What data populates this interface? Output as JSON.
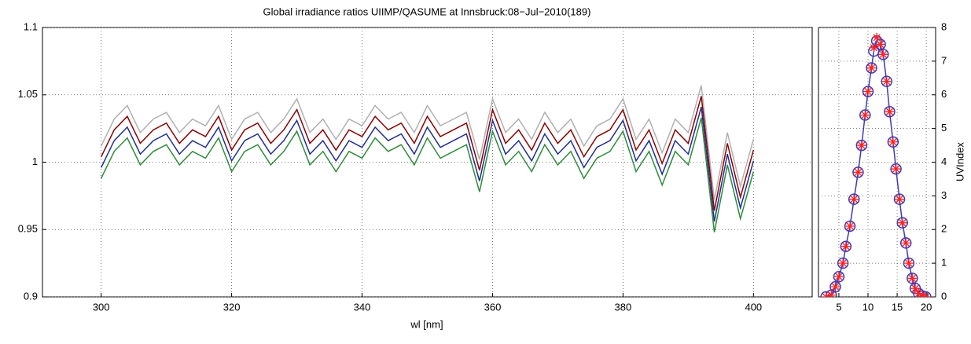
{
  "chart_data": [
    {
      "type": "line",
      "title": "Global irradiance ratios UIIMP/QASUME at Innsbruck:08−Jul−2010(189)",
      "xlabel": "wl [nm]",
      "xlim": [
        291,
        409
      ],
      "ylim": [
        0.9,
        1.1
      ],
      "xticks": [
        300,
        320,
        340,
        360,
        380,
        400
      ],
      "yticks": [
        0.9,
        0.95,
        1,
        1.05,
        1.1
      ],
      "grid": true,
      "x": [
        300,
        302,
        304,
        306,
        308,
        310,
        312,
        314,
        316,
        318,
        320,
        322,
        324,
        326,
        328,
        330,
        332,
        334,
        336,
        338,
        340,
        342,
        344,
        346,
        348,
        350,
        352,
        354,
        356,
        358,
        360,
        362,
        364,
        366,
        368,
        370,
        372,
        374,
        376,
        378,
        380,
        382,
        384,
        386,
        388,
        390,
        392,
        394,
        396,
        398,
        400
      ],
      "series": [
        {
          "color": "#b0b0b0",
          "values": [
            1.012,
            1.032,
            1.042,
            1.022,
            1.032,
            1.037,
            1.022,
            1.032,
            1.027,
            1.042,
            1.017,
            1.032,
            1.037,
            1.022,
            1.032,
            1.047,
            1.022,
            1.032,
            1.017,
            1.032,
            1.027,
            1.042,
            1.032,
            1.037,
            1.022,
            1.042,
            1.027,
            1.032,
            1.037,
            1.002,
            1.047,
            1.022,
            1.032,
            1.017,
            1.037,
            1.022,
            1.032,
            1.012,
            1.027,
            1.032,
            1.047,
            1.017,
            1.032,
            1.007,
            1.032,
            1.022,
            1.057,
            0.972,
            1.022,
            0.982,
            1.017
          ]
        },
        {
          "color": "#8b0000",
          "values": [
            1.004,
            1.024,
            1.034,
            1.014,
            1.024,
            1.029,
            1.014,
            1.024,
            1.019,
            1.034,
            1.009,
            1.024,
            1.029,
            1.014,
            1.024,
            1.039,
            1.014,
            1.024,
            1.009,
            1.024,
            1.019,
            1.034,
            1.024,
            1.029,
            1.014,
            1.034,
            1.019,
            1.024,
            1.029,
            0.994,
            1.039,
            1.014,
            1.024,
            1.009,
            1.029,
            1.014,
            1.024,
            1.004,
            1.019,
            1.024,
            1.039,
            1.009,
            1.024,
            0.999,
            1.024,
            1.014,
            1.049,
            0.964,
            1.014,
            0.974,
            1.009
          ]
        },
        {
          "color": "#1f2f8f",
          "values": [
            0.996,
            1.016,
            1.026,
            1.006,
            1.016,
            1.021,
            1.006,
            1.016,
            1.011,
            1.026,
            1.001,
            1.016,
            1.021,
            1.006,
            1.016,
            1.031,
            1.006,
            1.016,
            1.001,
            1.016,
            1.011,
            1.026,
            1.016,
            1.021,
            1.006,
            1.026,
            1.011,
            1.016,
            1.021,
            0.986,
            1.031,
            1.006,
            1.016,
            1.001,
            1.021,
            1.006,
            1.016,
            0.996,
            1.011,
            1.016,
            1.031,
            1.001,
            1.016,
            0.991,
            1.016,
            1.006,
            1.041,
            0.956,
            1.006,
            0.966,
            1.001
          ]
        },
        {
          "color": "#2e8b3a",
          "values": [
            0.988,
            1.008,
            1.018,
            0.998,
            1.008,
            1.013,
            0.998,
            1.008,
            1.003,
            1.018,
            0.993,
            1.008,
            1.013,
            0.998,
            1.008,
            1.023,
            0.998,
            1.008,
            0.993,
            1.008,
            1.003,
            1.018,
            1.008,
            1.013,
            0.998,
            1.018,
            1.003,
            1.008,
            1.013,
            0.978,
            1.023,
            0.998,
            1.008,
            0.993,
            1.013,
            0.998,
            1.008,
            0.988,
            1.003,
            1.008,
            1.023,
            0.993,
            1.008,
            0.983,
            1.008,
            0.998,
            1.033,
            0.948,
            0.998,
            0.958,
            0.993
          ]
        }
      ]
    },
    {
      "type": "line",
      "ylabel": "UVIndex",
      "xlim": [
        1.5,
        21.6
      ],
      "ylim": [
        0,
        8
      ],
      "xticks": [
        5,
        10,
        15,
        20
      ],
      "yticks": [
        0,
        1,
        2,
        3,
        4,
        5,
        6,
        7,
        8
      ],
      "grid": true,
      "x": [
        2.8,
        3.7,
        4.4,
        5.0,
        5.7,
        6.2,
        6.9,
        7.6,
        8.3,
        8.9,
        9.5,
        10.0,
        10.6,
        11.0,
        11.5,
        12.1,
        12.6,
        13.2,
        13.7,
        14.3,
        14.8,
        15.4,
        15.9,
        16.5,
        17.0,
        17.6,
        18.1,
        18.7,
        19.4,
        19.9
      ],
      "series": [
        {
          "color": "#3a3aba",
          "marker": "circle",
          "line": true,
          "values": [
            0,
            0.05,
            0.3,
            0.6,
            1.0,
            1.5,
            2.1,
            2.9,
            3.7,
            4.5,
            5.4,
            6.1,
            6.8,
            7.3,
            7.6,
            7.5,
            7.2,
            6.4,
            5.5,
            4.6,
            3.8,
            2.9,
            2.2,
            1.6,
            1.0,
            0.55,
            0.25,
            0.1,
            0.02,
            0
          ]
        },
        {
          "color": "#ff2020",
          "marker": "star",
          "line": false,
          "values": [
            0,
            0.05,
            0.3,
            0.6,
            1.0,
            1.5,
            2.1,
            2.9,
            3.7,
            4.5,
            5.4,
            6.1,
            6.8,
            7.4,
            7.7,
            7.5,
            7.2,
            6.4,
            5.5,
            4.6,
            3.8,
            2.9,
            2.2,
            1.6,
            1.0,
            0.55,
            0.25,
            0.1,
            0.02,
            0
          ]
        }
      ]
    }
  ]
}
